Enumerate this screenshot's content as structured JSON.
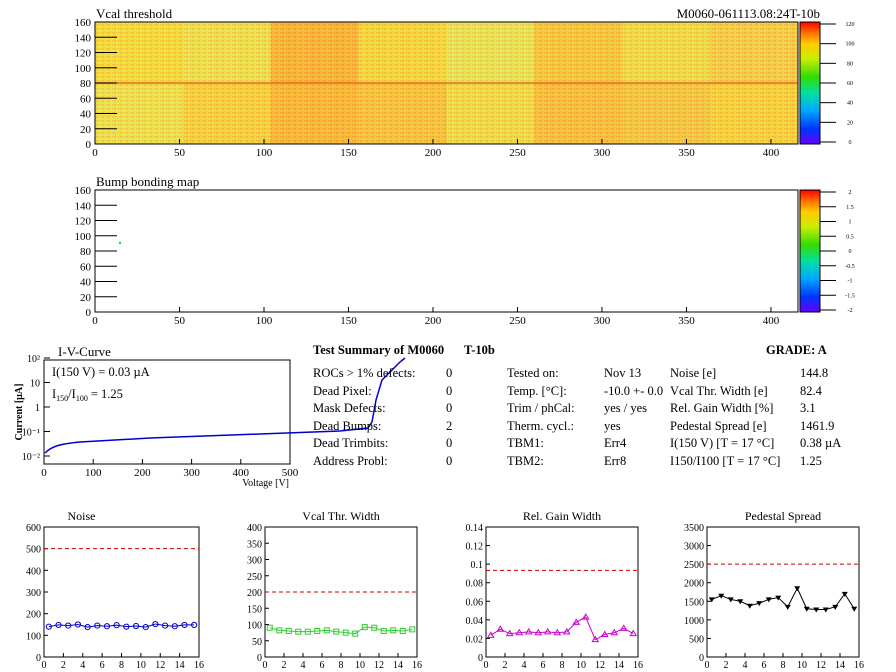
{
  "colors": {
    "hmap_main": "#f0e040",
    "noise": "#0000cc",
    "vcal": "#33cc33",
    "gain": "#cc00cc",
    "ped": "#000000",
    "ref_line": "#cc0000",
    "iv": "#0000cc"
  },
  "top_map": {
    "title": "Vcal threshold",
    "id_label": "M0060-061113.08:24T-10b",
    "xticks": [
      "0",
      "50",
      "100",
      "150",
      "200",
      "250",
      "300",
      "350",
      "400"
    ],
    "yticks": [
      "0",
      "20",
      "40",
      "60",
      "80",
      "100",
      "120",
      "140",
      "160"
    ],
    "zticks": [
      "0",
      "20",
      "40",
      "60",
      "80",
      "100",
      "120"
    ]
  },
  "bump_map": {
    "title": "Bump bonding map",
    "xticks": [
      "0",
      "50",
      "100",
      "150",
      "200",
      "250",
      "300",
      "350",
      "400"
    ],
    "yticks": [
      "0",
      "20",
      "40",
      "60",
      "80",
      "100",
      "120",
      "140",
      "160"
    ],
    "zticks": [
      "-2",
      "-1.5",
      "-1",
      "-0.5",
      "0",
      "0.5",
      "1",
      "1.5",
      "2"
    ]
  },
  "iv": {
    "title": "I-V-Curve",
    "ylabel": "Current [µA]",
    "xlabel": "Voltage [V]",
    "ann1": "I(150 V) = 0.03 µA",
    "ann2_a": "I",
    "ann2_s1": "150",
    "ann2_b": "/I",
    "ann2_s2": "100",
    "ann2_c": "=  1.25",
    "xticks": [
      "0",
      "100",
      "200",
      "300",
      "400",
      "500"
    ],
    "yticks": [
      "10⁻²",
      "10⁻¹",
      "1",
      "10",
      "10²"
    ]
  },
  "summary": {
    "title": "Test Summary of M0060",
    "tag": "T-10b",
    "grade_label": "GRADE:  A",
    "left": [
      {
        "label": "ROCs > 1% defects:",
        "value": "0"
      },
      {
        "label": "Dead Pixel:",
        "value": "0"
      },
      {
        "label": "Mask Defects:",
        "value": "0"
      },
      {
        "label": "Dead Bumps:",
        "value": "2"
      },
      {
        "label": "Dead Trimbits:",
        "value": "0"
      },
      {
        "label": "Address Probl:",
        "value": "0"
      }
    ],
    "mid": [
      {
        "label": "Tested on:",
        "value": "Nov 13"
      },
      {
        "label": "Temp. [°C]:",
        "value": "-10.0 +- 0.0"
      },
      {
        "label": "Trim / phCal:",
        "value": "yes / yes"
      },
      {
        "label": "Therm. cycl.:",
        "value": "yes"
      },
      {
        "label": "TBM1:",
        "value": "Err4"
      },
      {
        "label": "TBM2:",
        "value": "Err8"
      }
    ],
    "right": [
      {
        "label": "Noise [e]",
        "value": "144.8"
      },
      {
        "label": "Vcal Thr. Width [e]",
        "value": "82.4"
      },
      {
        "label": "Rel. Gain Width [%]",
        "value": "3.1"
      },
      {
        "label": "Pedestal Spread [e]",
        "value": "1461.9"
      },
      {
        "label": "I(150 V) [T = 17 °C]",
        "value": "0.38 µA"
      },
      {
        "label": "I150/I100  [T = 17 °C]",
        "value": "1.25"
      }
    ]
  },
  "chart_data": [
    {
      "type": "line",
      "title": "Noise",
      "xlim": [
        0,
        16
      ],
      "ylim": [
        0,
        600
      ],
      "yticks": [
        "0",
        "100",
        "200",
        "300",
        "400",
        "500",
        "600"
      ],
      "xticks": [
        "0",
        "2",
        "4",
        "6",
        "8",
        "10",
        "12",
        "14",
        "16"
      ],
      "ref": 500,
      "x": [
        0.5,
        1.5,
        2.5,
        3.5,
        4.5,
        5.5,
        6.5,
        7.5,
        8.5,
        9.5,
        10.5,
        11.5,
        12.5,
        13.5,
        14.5,
        15.5
      ],
      "values": [
        140,
        148,
        145,
        150,
        138,
        145,
        142,
        147,
        140,
        143,
        138,
        152,
        145,
        142,
        148,
        148
      ]
    },
    {
      "type": "line",
      "title": "Vcal Thr. Width",
      "xlim": [
        0,
        16
      ],
      "ylim": [
        0,
        400
      ],
      "yticks": [
        "0",
        "50",
        "100",
        "150",
        "200",
        "250",
        "300",
        "350",
        "400"
      ],
      "xticks": [
        "0",
        "2",
        "4",
        "6",
        "8",
        "10",
        "12",
        "14",
        "16"
      ],
      "ref": 200,
      "x": [
        0.5,
        1.5,
        2.5,
        3.5,
        4.5,
        5.5,
        6.5,
        7.5,
        8.5,
        9.5,
        10.5,
        11.5,
        12.5,
        13.5,
        14.5,
        15.5
      ],
      "values": [
        90,
        82,
        80,
        78,
        78,
        80,
        82,
        78,
        75,
        72,
        92,
        90,
        80,
        82,
        80,
        85
      ]
    },
    {
      "type": "line",
      "title": "Rel. Gain Width",
      "xlim": [
        0,
        16
      ],
      "ylim": [
        0,
        0.15
      ],
      "yticks": [
        "0",
        "0.02",
        "0.04",
        "0.06",
        "0.08",
        "0.1",
        "0.12",
        "0.14"
      ],
      "xticks": [
        "0",
        "2",
        "4",
        "6",
        "8",
        "10",
        "12",
        "14",
        "16"
      ],
      "ref": 0.1,
      "x": [
        0.5,
        1.5,
        2.5,
        3.5,
        4.5,
        5.5,
        6.5,
        7.5,
        8.5,
        9.5,
        10.5,
        11.5,
        12.5,
        13.5,
        14.5,
        15.5
      ],
      "values": [
        0.025,
        0.032,
        0.027,
        0.028,
        0.029,
        0.028,
        0.029,
        0.028,
        0.029,
        0.04,
        0.046,
        0.02,
        0.026,
        0.028,
        0.033,
        0.027
      ]
    },
    {
      "type": "line",
      "title": "Pedestal Spread",
      "xlim": [
        0,
        16
      ],
      "ylim": [
        0,
        3500
      ],
      "yticks": [
        "0",
        "500",
        "1000",
        "1500",
        "2000",
        "2500",
        "3000",
        "3500"
      ],
      "xticks": [
        "0",
        "2",
        "4",
        "6",
        "8",
        "10",
        "12",
        "14",
        "16"
      ],
      "ref": 2500,
      "x": [
        0.5,
        1.5,
        2.5,
        3.5,
        4.5,
        5.5,
        6.5,
        7.5,
        8.5,
        9.5,
        10.5,
        11.5,
        12.5,
        13.5,
        14.5,
        15.5
      ],
      "values": [
        1550,
        1650,
        1550,
        1500,
        1380,
        1450,
        1550,
        1600,
        1350,
        1850,
        1300,
        1280,
        1280,
        1350,
        1700,
        1300
      ]
    }
  ]
}
